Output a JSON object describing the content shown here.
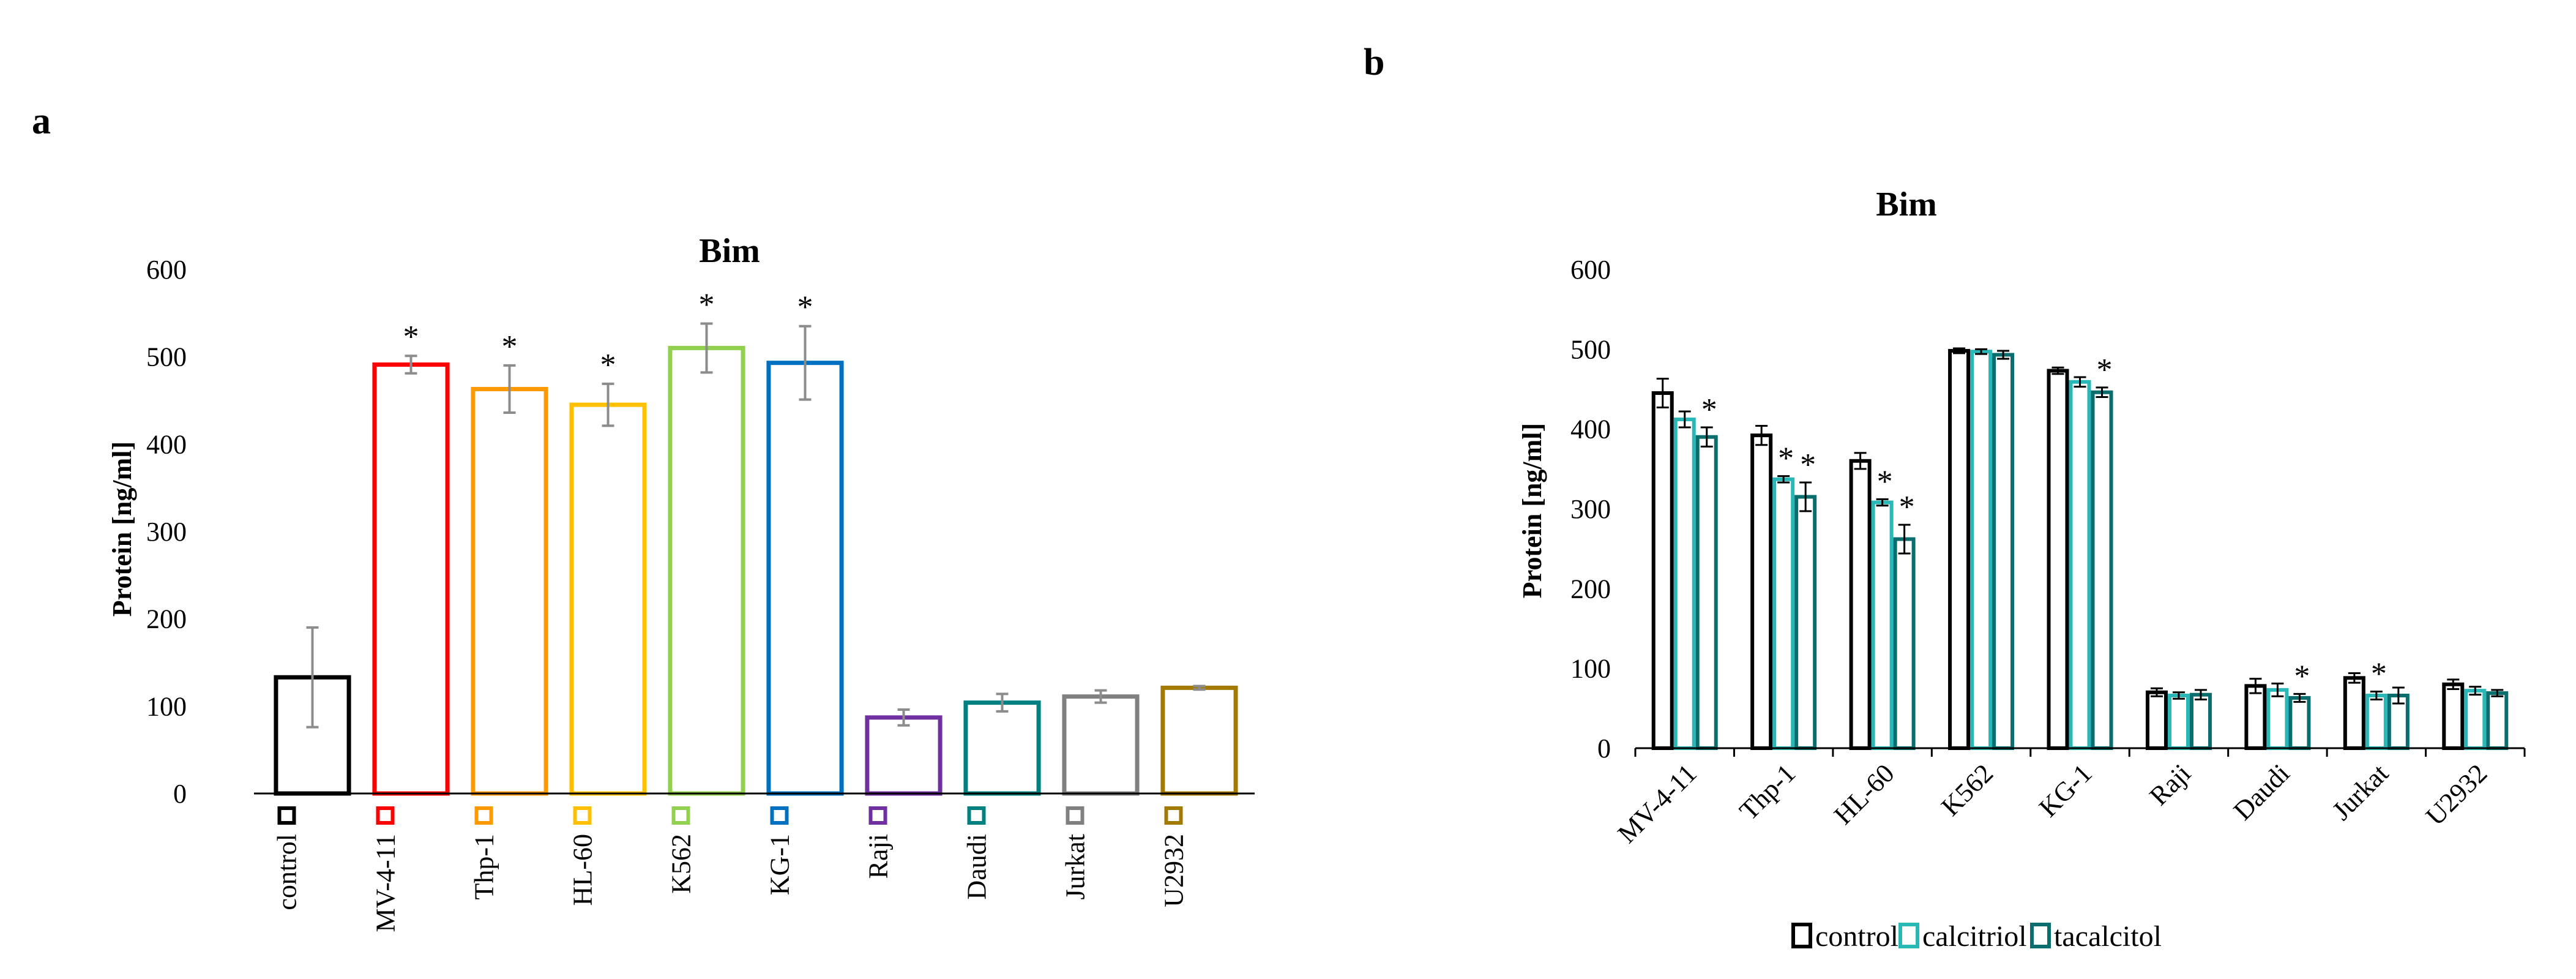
{
  "panels": {
    "a": {
      "letter": "a"
    },
    "b": {
      "letter": "b"
    }
  },
  "chart_data": [
    {
      "id": "a",
      "type": "bar",
      "title": "Bim",
      "xlabel": "",
      "ylabel": "Protein [ng/ml]",
      "ylim": [
        0,
        600
      ],
      "yticks": [
        "0",
        "100",
        "200",
        "300",
        "400",
        "500",
        "600"
      ],
      "grid": false,
      "categories": [
        "control",
        "MV-4-11",
        "Thp-1",
        "HL-60",
        "K562",
        "KG-1",
        "Raji",
        "Daudi",
        "Jurkat",
        "U2932"
      ],
      "values": [
        133,
        491,
        463,
        445,
        510,
        493,
        87,
        104,
        111,
        121
      ],
      "errors": [
        57,
        10,
        27,
        24,
        28,
        42,
        9,
        10,
        7,
        2
      ],
      "colors": [
        "#000000",
        "#ff0000",
        "#ff9900",
        "#ffc000",
        "#92d050",
        "#0070c0",
        "#7030a0",
        "#008080",
        "#808080",
        "#a37a00"
      ],
      "error_color": "#8c8c8c",
      "significance": [
        "",
        "*",
        "*",
        "*",
        "*",
        "*",
        "",
        "",
        "",
        ""
      ]
    },
    {
      "id": "b",
      "type": "bar",
      "title": "Bim",
      "xlabel": "",
      "ylabel": "Protein [ng/ml]",
      "ylim": [
        0,
        600
      ],
      "yticks": [
        "0",
        "100",
        "200",
        "300",
        "400",
        "500",
        "600"
      ],
      "grid": false,
      "legend_position": "bottom",
      "categories": [
        "MV-4-11",
        "Thp-1",
        "HL-60",
        "K562",
        "KG-1",
        "Raji",
        "Daudi",
        "Jurkat",
        "U2932"
      ],
      "series": [
        {
          "name": "control",
          "color": "#000000",
          "values": [
            445,
            392,
            360,
            498,
            473,
            70,
            78,
            88,
            80
          ],
          "errors": [
            18,
            12,
            10,
            3,
            4,
            5,
            9,
            6,
            6
          ],
          "significance": [
            "",
            "",
            "",
            "",
            "",
            "",
            "",
            "",
            ""
          ]
        },
        {
          "name": "calcitriol",
          "color": "#2ab7b7",
          "values": [
            412,
            337,
            308,
            497,
            459,
            66,
            73,
            66,
            72
          ],
          "errors": [
            10,
            4,
            4,
            3,
            6,
            4,
            8,
            5,
            5
          ],
          "significance": [
            "",
            "*",
            "*",
            "",
            "",
            "",
            "",
            "*",
            ""
          ]
        },
        {
          "name": "tacalcitol",
          "color": "#0b6e6e",
          "values": [
            390,
            315,
            262,
            493,
            446,
            67,
            63,
            66,
            69
          ],
          "errors": [
            12,
            18,
            18,
            5,
            6,
            6,
            5,
            10,
            4
          ],
          "significance": [
            "*",
            "*",
            "*",
            "",
            "*",
            "",
            "*",
            "",
            ""
          ]
        }
      ]
    }
  ]
}
